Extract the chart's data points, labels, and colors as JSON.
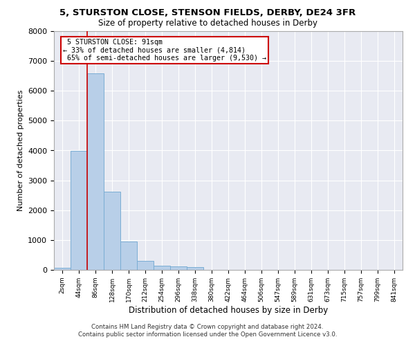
{
  "title": "5, STURSTON CLOSE, STENSON FIELDS, DERBY, DE24 3FR",
  "subtitle": "Size of property relative to detached houses in Derby",
  "xlabel": "Distribution of detached houses by size in Derby",
  "ylabel": "Number of detached properties",
  "bar_color": "#b8cfe8",
  "bar_edge_color": "#7aadd4",
  "background_color": "#e8eaf2",
  "grid_color": "#ffffff",
  "categories": [
    "2sqm",
    "44sqm",
    "86sqm",
    "128sqm",
    "170sqm",
    "212sqm",
    "254sqm",
    "296sqm",
    "338sqm",
    "380sqm",
    "422sqm",
    "464sqm",
    "506sqm",
    "547sqm",
    "589sqm",
    "631sqm",
    "673sqm",
    "715sqm",
    "757sqm",
    "799sqm",
    "841sqm"
  ],
  "values": [
    80,
    3980,
    6580,
    2620,
    960,
    310,
    135,
    110,
    85,
    0,
    0,
    0,
    0,
    0,
    0,
    0,
    0,
    0,
    0,
    0,
    0
  ],
  "ylim": [
    0,
    8000
  ],
  "yticks": [
    0,
    1000,
    2000,
    3000,
    4000,
    5000,
    6000,
    7000,
    8000
  ],
  "property_label": "5 STURSTON CLOSE: 91sqm",
  "pct_smaller": "33%",
  "n_smaller": "4,814",
  "pct_larger": "65%",
  "n_larger": "9,530",
  "annotation_box_color": "#cc0000",
  "vline_index": 1.5,
  "footnote1": "Contains HM Land Registry data © Crown copyright and database right 2024.",
  "footnote2": "Contains public sector information licensed under the Open Government Licence v3.0."
}
